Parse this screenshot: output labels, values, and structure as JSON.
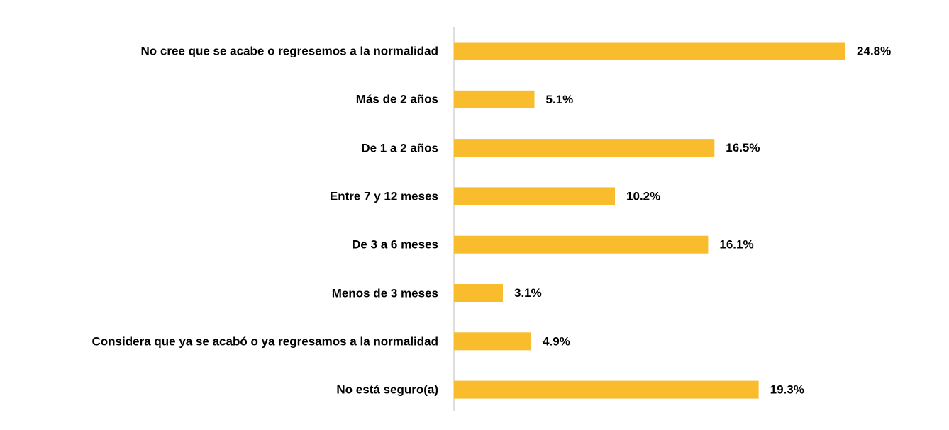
{
  "chart_data": {
    "type": "bar",
    "orientation": "horizontal",
    "categories": [
      "No cree que se acabe o regresemos a la normalidad",
      "Más de 2 años",
      "De 1 a 2 años",
      "Entre 7 y 12 meses",
      "De 3 a 6 meses",
      "Menos de 3 meses",
      "Considera que ya se acabó o ya regresamos a la normalidad",
      "No está seguro(a)"
    ],
    "values": [
      24.8,
      5.1,
      16.5,
      10.2,
      16.1,
      3.1,
      4.9,
      19.3
    ],
    "value_labels": [
      "24.8%",
      "5.1%",
      "16.5%",
      "10.2%",
      "16.1%",
      "3.1%",
      "4.9%",
      "19.3%"
    ],
    "color": "#f9bc2c"
  }
}
